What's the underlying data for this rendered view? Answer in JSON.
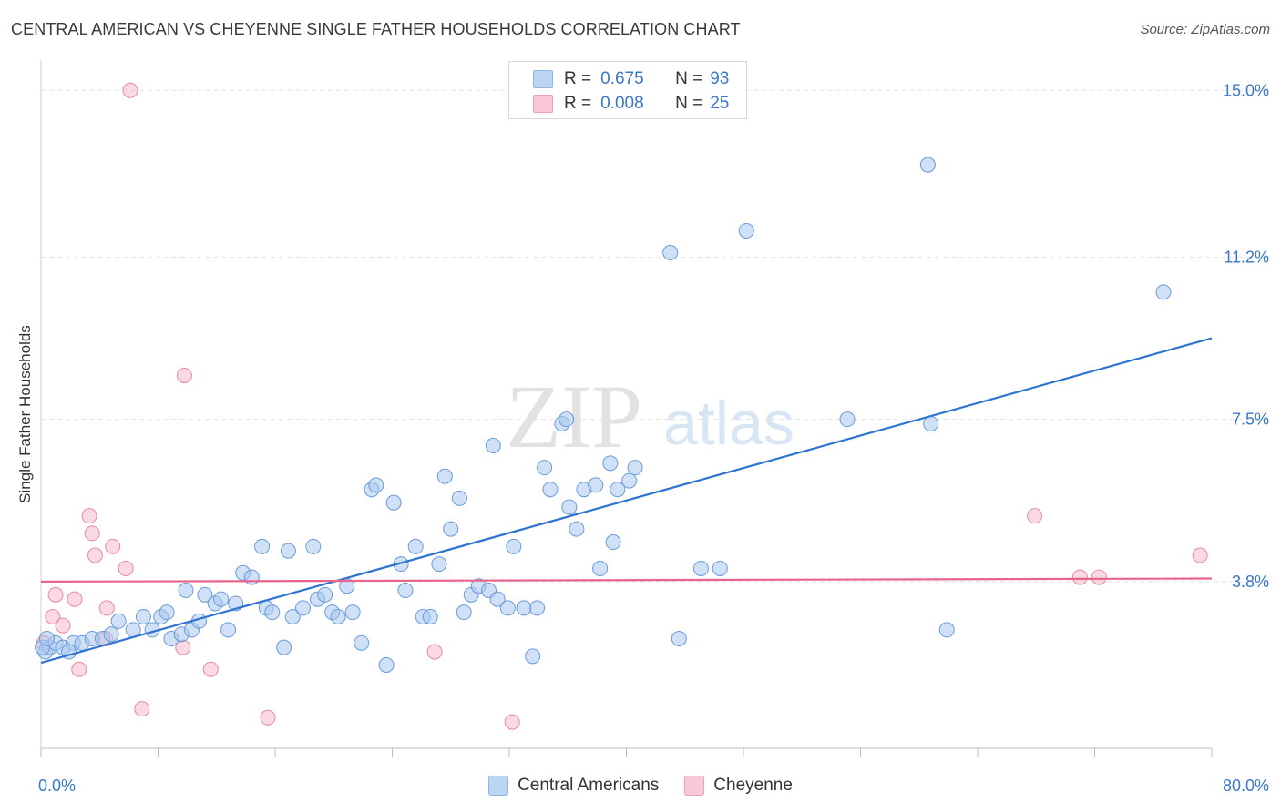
{
  "header": {
    "title": "CENTRAL AMERICAN VS CHEYENNE SINGLE FATHER HOUSEHOLDS CORRELATION CHART",
    "source": "Source: ZipAtlas.com"
  },
  "watermark": {
    "zip": "ZIP",
    "atlas": "atlas"
  },
  "legend": {
    "rows": [
      {
        "r_label": "R =",
        "r_value": "0.675",
        "n_label": "N =",
        "n_value": "93",
        "color": "#a9c8f0"
      },
      {
        "r_label": "R =",
        "r_value": "0.008",
        "n_label": "N =",
        "n_value": "25",
        "color": "#f7b9cb"
      }
    ]
  },
  "bottom_legend": {
    "items": [
      {
        "label": "Central Americans",
        "color": "#a9c8f0"
      },
      {
        "label": "Cheyenne",
        "color": "#f7b9cb"
      }
    ]
  },
  "chart_data": {
    "type": "scatter",
    "title": "CENTRAL AMERICAN VS CHEYENNE SINGLE FATHER HOUSEHOLDS CORRELATION CHART",
    "xlabel": "",
    "ylabel": "Single Father Households",
    "xlim": [
      0,
      80
    ],
    "ylim": [
      0,
      15.4
    ],
    "x_tick_labels": [
      "0.0%",
      "80.0%"
    ],
    "y_ticks": [
      3.8,
      7.5,
      11.2,
      15.0
    ],
    "y_tick_labels": [
      "3.8%",
      "7.5%",
      "11.2%",
      "15.0%"
    ],
    "grid": true,
    "legend_position": "top-center",
    "series": [
      {
        "name": "Central Americans",
        "color": "#a9c8f0",
        "stroke": "#6a9bd8",
        "trend": {
          "x": [
            0,
            80
          ],
          "y": [
            1.95,
            9.35
          ],
          "color": "#2e74d0"
        },
        "points": [
          [
            0.3,
            2.2
          ],
          [
            0.6,
            2.3
          ],
          [
            1.0,
            2.4
          ],
          [
            1.5,
            2.3
          ],
          [
            2.2,
            2.4
          ],
          [
            2.8,
            2.4
          ],
          [
            3.5,
            2.5
          ],
          [
            4.2,
            2.5
          ],
          [
            4.8,
            2.6
          ],
          [
            5.3,
            2.9
          ],
          [
            6.3,
            2.7
          ],
          [
            7.0,
            3.0
          ],
          [
            7.6,
            2.7
          ],
          [
            8.2,
            3.0
          ],
          [
            8.6,
            3.1
          ],
          [
            8.9,
            2.5
          ],
          [
            9.6,
            2.6
          ],
          [
            9.9,
            3.6
          ],
          [
            10.3,
            2.7
          ],
          [
            10.8,
            2.9
          ],
          [
            11.2,
            3.5
          ],
          [
            11.9,
            3.3
          ],
          [
            12.3,
            3.4
          ],
          [
            12.8,
            2.7
          ],
          [
            13.3,
            3.3
          ],
          [
            13.8,
            4.0
          ],
          [
            14.4,
            3.9
          ],
          [
            15.1,
            4.6
          ],
          [
            15.4,
            3.2
          ],
          [
            15.8,
            3.1
          ],
          [
            16.6,
            2.3
          ],
          [
            16.9,
            4.5
          ],
          [
            17.2,
            3.0
          ],
          [
            17.9,
            3.2
          ],
          [
            18.6,
            4.6
          ],
          [
            18.9,
            3.4
          ],
          [
            19.4,
            3.5
          ],
          [
            19.9,
            3.1
          ],
          [
            20.3,
            3.0
          ],
          [
            20.9,
            3.7
          ],
          [
            21.3,
            3.1
          ],
          [
            21.9,
            2.4
          ],
          [
            22.6,
            5.9
          ],
          [
            22.9,
            6.0
          ],
          [
            23.6,
            1.9
          ],
          [
            24.1,
            5.6
          ],
          [
            24.6,
            4.2
          ],
          [
            24.9,
            3.6
          ],
          [
            25.6,
            4.6
          ],
          [
            26.1,
            3.0
          ],
          [
            26.6,
            3.0
          ],
          [
            27.2,
            4.2
          ],
          [
            27.6,
            6.2
          ],
          [
            28.0,
            5.0
          ],
          [
            28.6,
            5.7
          ],
          [
            28.9,
            3.1
          ],
          [
            29.4,
            3.5
          ],
          [
            29.9,
            3.7
          ],
          [
            30.6,
            3.6
          ],
          [
            30.9,
            6.9
          ],
          [
            31.2,
            3.4
          ],
          [
            31.9,
            3.2
          ],
          [
            32.3,
            4.6
          ],
          [
            33.0,
            3.2
          ],
          [
            33.6,
            2.1
          ],
          [
            33.9,
            3.2
          ],
          [
            34.4,
            6.4
          ],
          [
            34.8,
            5.9
          ],
          [
            35.6,
            7.4
          ],
          [
            35.9,
            7.5
          ],
          [
            36.1,
            5.5
          ],
          [
            36.6,
            5.0
          ],
          [
            37.1,
            5.9
          ],
          [
            37.9,
            6.0
          ],
          [
            38.2,
            4.1
          ],
          [
            38.9,
            6.5
          ],
          [
            39.1,
            4.7
          ],
          [
            39.4,
            5.9
          ],
          [
            40.2,
            6.1
          ],
          [
            40.6,
            6.4
          ],
          [
            43.0,
            11.3
          ],
          [
            43.6,
            2.5
          ],
          [
            45.1,
            4.1
          ],
          [
            46.4,
            4.1
          ],
          [
            48.2,
            11.8
          ],
          [
            55.1,
            7.5
          ],
          [
            60.6,
            13.3
          ],
          [
            60.8,
            7.4
          ],
          [
            61.9,
            2.7
          ],
          [
            76.7,
            10.4
          ],
          [
            0.1,
            2.3
          ],
          [
            0.4,
            2.5
          ],
          [
            1.9,
            2.2
          ]
        ]
      },
      {
        "name": "Cheyenne",
        "color": "#f7b9cb",
        "stroke": "#e58aa5",
        "trend": {
          "x": [
            0,
            80
          ],
          "y": [
            3.8,
            3.87
          ],
          "color": "#e8648a"
        },
        "points": [
          [
            0.2,
            2.4
          ],
          [
            0.8,
            3.0
          ],
          [
            1.0,
            3.5
          ],
          [
            1.5,
            2.8
          ],
          [
            2.3,
            3.4
          ],
          [
            2.6,
            1.8
          ],
          [
            3.3,
            5.3
          ],
          [
            3.5,
            4.9
          ],
          [
            3.7,
            4.4
          ],
          [
            4.4,
            2.5
          ],
          [
            4.5,
            3.2
          ],
          [
            4.9,
            4.6
          ],
          [
            5.8,
            4.1
          ],
          [
            6.1,
            15.0
          ],
          [
            6.9,
            0.9
          ],
          [
            9.7,
            2.3
          ],
          [
            9.8,
            8.5
          ],
          [
            11.6,
            1.8
          ],
          [
            15.5,
            0.7
          ],
          [
            26.9,
            2.2
          ],
          [
            32.2,
            0.6
          ],
          [
            67.9,
            5.3
          ],
          [
            71.0,
            3.9
          ],
          [
            72.3,
            3.9
          ],
          [
            79.2,
            4.4
          ]
        ]
      }
    ]
  }
}
